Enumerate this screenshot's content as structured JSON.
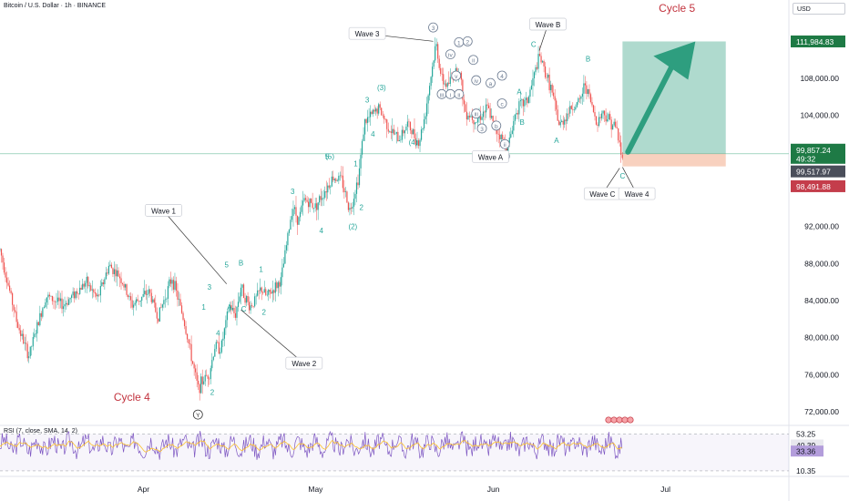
{
  "header": {
    "title": "Bitcoin / U.S. Dollar · 1h · BINANCE",
    "currency": "USD"
  },
  "rsi_label": "RSI (7, close, SMA, 14, 2)",
  "colors": {
    "up": "#26a69a",
    "down": "#ef5350",
    "wave": "#26a69a",
    "cycle": "#c2333e",
    "rsi_line": "#7e57c2",
    "rsi_ma": "#fbc02d",
    "target": "#2e9e7f",
    "price_tag": "#1e7a45",
    "grey_tag": "#4a4e5a",
    "red_tag": "#c43d4b"
  },
  "chart_data": [
    {
      "type": "candlestick",
      "ylim": [
        70000,
        116000
      ],
      "y_ticks": [
        {
          "value": 72000,
          "label": "72,000.00"
        },
        {
          "value": 76000,
          "label": "76,000.00"
        },
        {
          "value": 80000,
          "label": "80,000.00"
        },
        {
          "value": 84000,
          "label": "84,000.00"
        },
        {
          "value": 88000,
          "label": "88,000.00"
        },
        {
          "value": 92000,
          "label": "92,000.00"
        },
        {
          "value": 104000,
          "label": "104,000.00"
        },
        {
          "value": 108000,
          "label": "108,000.00"
        }
      ],
      "x_ticks": [
        {
          "day": 19,
          "label": "Apr"
        },
        {
          "day": 49,
          "label": "May"
        },
        {
          "day": 80,
          "label": "Jun"
        },
        {
          "day": 110,
          "label": "Jul"
        }
      ],
      "xlim": [
        -6,
        131.5
      ],
      "price_path": [
        [
          -6,
          89500
        ],
        [
          -3,
          81500
        ],
        [
          -1,
          78000
        ],
        [
          2,
          84500
        ],
        [
          5,
          83500
        ],
        [
          9,
          86000
        ],
        [
          11,
          84200
        ],
        [
          13,
          87800
        ],
        [
          15,
          86500
        ],
        [
          17,
          83500
        ],
        [
          20,
          85000
        ],
        [
          21.5,
          82200
        ],
        [
          24,
          86500
        ],
        [
          26,
          82000
        ],
        [
          28.5,
          74500
        ],
        [
          29.5,
          75500
        ],
        [
          30.5,
          76200
        ],
        [
          31.5,
          79200
        ],
        [
          32.5,
          78800
        ],
        [
          34,
          83500
        ],
        [
          35,
          82400
        ],
        [
          36,
          85500
        ],
        [
          37.5,
          83300
        ],
        [
          38.5,
          84100
        ],
        [
          39.5,
          85300
        ],
        [
          40.5,
          84400
        ],
        [
          43,
          86200
        ],
        [
          45,
          94300
        ],
        [
          46,
          92600
        ],
        [
          47,
          94900
        ],
        [
          49,
          94200
        ],
        [
          52,
          97300
        ],
        [
          53.5,
          97100
        ],
        [
          55,
          93700
        ],
        [
          56.5,
          97400
        ],
        [
          57.5,
          103200
        ],
        [
          60,
          104800
        ],
        [
          62,
          102400
        ],
        [
          63.5,
          101400
        ],
        [
          65,
          103100
        ],
        [
          67,
          101000
        ],
        [
          68,
          103800
        ],
        [
          70,
          111800
        ],
        [
          71,
          107800
        ],
        [
          72,
          107200
        ],
        [
          73,
          108400
        ],
        [
          74,
          109200
        ],
        [
          75,
          104500
        ],
        [
          77,
          103500
        ],
        [
          79,
          104800
        ],
        [
          80,
          103000
        ],
        [
          82.5,
          100500
        ],
        [
          84,
          104700
        ],
        [
          86,
          105700
        ],
        [
          88,
          110400
        ],
        [
          90,
          107000
        ],
        [
          91.5,
          102800
        ],
        [
          93.5,
          104800
        ],
        [
          95,
          105400
        ],
        [
          96,
          107500
        ],
        [
          98,
          103200
        ],
        [
          99,
          104400
        ],
        [
          100.5,
          103300
        ],
        [
          101.5,
          102500
        ],
        [
          102.5,
          99000
        ]
      ],
      "price_tags": [
        {
          "value": 111984.83,
          "label": "111,984.83",
          "style": "green"
        },
        {
          "value": 100300,
          "label": "99,857.24",
          "sub": "49:32",
          "style": "green"
        },
        {
          "value": 97950,
          "label": "99,517.97",
          "style": "grey"
        },
        {
          "value": 96350,
          "label": "98,491.88",
          "style": "red"
        }
      ],
      "current_price": 99857.24,
      "target": {
        "entry": 99857.24,
        "target": 111984.83,
        "stop": 98491.88,
        "x_start": 102.5,
        "x_end": 120.5
      },
      "wave_labels": [
        {
          "t": "1",
          "d": 29.5,
          "v": 83000
        },
        {
          "t": "2",
          "d": 31,
          "v": 73800
        },
        {
          "t": "3",
          "d": 30.5,
          "v": 85200
        },
        {
          "t": "4",
          "d": 32,
          "v": 80200
        },
        {
          "t": "5",
          "d": 33.5,
          "v": 87600
        },
        {
          "t": "A",
          "d": 34,
          "v": 83000
        },
        {
          "t": "B",
          "d": 36,
          "v": 87800
        },
        {
          "t": "C",
          "d": 36.5,
          "v": 82800
        },
        {
          "t": "1",
          "d": 39.5,
          "v": 87100
        },
        {
          "t": "2",
          "d": 40,
          "v": 82500
        },
        {
          "t": "3",
          "d": 45,
          "v": 95500
        },
        {
          "t": "4",
          "d": 50,
          "v": 91300
        },
        {
          "t": "1",
          "d": 56,
          "v": 98500
        },
        {
          "t": "2",
          "d": 57,
          "v": 93800
        },
        {
          "t": "3",
          "d": 58,
          "v": 105400
        },
        {
          "t": "4",
          "d": 59,
          "v": 101700
        },
        {
          "t": "(5)",
          "d": 51.5,
          "v": 99300
        },
        {
          "t": "(2)",
          "d": 55.5,
          "v": 91700
        },
        {
          "t": "(3)",
          "d": 60.5,
          "v": 106700
        },
        {
          "t": "(4)",
          "d": 66,
          "v": 100800
        },
        {
          "t": "5",
          "d": 51,
          "v": 99300
        },
        {
          "t": "C",
          "d": 87,
          "v": 111400
        },
        {
          "t": "B",
          "d": 96.5,
          "v": 109800
        },
        {
          "t": "A",
          "d": 84.5,
          "v": 106300
        },
        {
          "t": "B",
          "d": 85,
          "v": 103000
        },
        {
          "t": "A",
          "d": 91,
          "v": 101000
        },
        {
          "t": "C",
          "d": 102.5,
          "v": 97200
        }
      ],
      "circled_labels": [
        {
          "t": "3",
          "d": 69.5,
          "v": 113200
        },
        {
          "t": "iii",
          "d": 71,
          "v": 106000
        },
        {
          "t": "iv",
          "d": 72.5,
          "v": 110300
        },
        {
          "t": "i",
          "d": 72.5,
          "v": 106000
        },
        {
          "t": "v",
          "d": 73.5,
          "v": 108000
        },
        {
          "t": "ii",
          "d": 74,
          "v": 106000
        },
        {
          "t": "1",
          "d": 74,
          "v": 111600
        },
        {
          "t": "2",
          "d": 75.5,
          "v": 111700
        },
        {
          "t": "ii",
          "d": 76.5,
          "v": 109700
        },
        {
          "t": "iv",
          "d": 77,
          "v": 107500
        },
        {
          "t": "iii",
          "d": 77,
          "v": 103900
        },
        {
          "t": "3",
          "d": 78,
          "v": 102300
        },
        {
          "t": "a",
          "d": 79.5,
          "v": 107200
        },
        {
          "t": "4",
          "d": 81.5,
          "v": 108000
        },
        {
          "t": "b",
          "d": 80.5,
          "v": 102600
        },
        {
          "t": "c",
          "d": 81.5,
          "v": 105000
        },
        {
          "t": "ii",
          "d": 82,
          "v": 100600
        },
        {
          "t": "5",
          "d": 82,
          "v": 99300
        },
        {
          "t": "Y",
          "d": 28.5,
          "v": 71400
        }
      ],
      "callouts": [
        {
          "t": "Wave 1",
          "d": 22.5,
          "v": 93700,
          "ld": 33.5,
          "lv": 85800
        },
        {
          "t": "Wave 2",
          "d": 47,
          "v": 77200,
          "ld": 36,
          "lv": 83000
        },
        {
          "t": "Wave 3",
          "d": 58,
          "v": 112800,
          "ld": 69.5,
          "lv": 112000
        },
        {
          "t": "Wave B",
          "d": 89.5,
          "v": 113800,
          "ld": 88,
          "lv": 111000
        },
        {
          "t": "Wave A",
          "d": 79.5,
          "v": 99500,
          "ld": 82.5,
          "lv": 100300
        },
        {
          "t": "Wave C",
          "d": 99,
          "v": 95500,
          "ld": 102,
          "lv": 98300
        },
        {
          "t": "Wave 4",
          "d": 105,
          "v": 95500,
          "ld": 102.5,
          "lv": 98400
        }
      ],
      "cycles": [
        {
          "t": "Cycle 4",
          "d": 17,
          "v": 73200
        },
        {
          "t": "Cycle 5",
          "d": 112,
          "v": 115200
        }
      ]
    },
    {
      "type": "line",
      "name": "RSI (7, close, SMA, 14, 2)",
      "ylim": [
        5,
        60
      ],
      "levels": [
        {
          "value": 53.25,
          "label": "53.25"
        },
        {
          "value": 10.35,
          "label": "10.35"
        }
      ],
      "rsi_tags": [
        {
          "value": 40.39,
          "label": "40.39",
          "style": "light"
        },
        {
          "value": 33.36,
          "label": "33.36",
          "style": "purple"
        }
      ]
    }
  ]
}
